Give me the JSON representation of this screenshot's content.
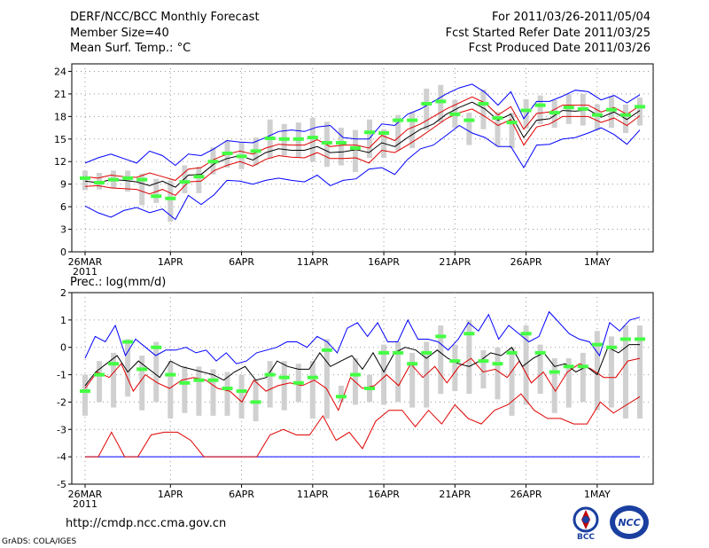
{
  "header": {
    "title": "DERF/NCC/BCC Monthly Forecast",
    "members": "Member Size=40",
    "variable": "Mean Surf. Temp.: °C",
    "period": "For 2011/03/26-2011/05/04",
    "started": "Fcst Started Refer Date 2011/03/25",
    "produced": "Fcst Produced Date 2011/03/26"
  },
  "footer": {
    "url": "http://cmdp.ncc.cma.gov.cn",
    "credit": "GrADS: COLA/IGES",
    "logo_left_text": "BCC",
    "logo_right_text": "NCC"
  },
  "colors": {
    "mean": "#000000",
    "inner": "#e00000",
    "outer": "#0000ff",
    "box": "#d0d0d0",
    "marker": "#44ff44",
    "grid": "#999999"
  },
  "chart_data": [
    {
      "type": "line",
      "title": "Mean Surf. Temp.: °C",
      "x_tick_labels": [
        "26MAR",
        "1APR",
        "6APR",
        "11APR",
        "16APR",
        "21APR",
        "26APR",
        "1MAY"
      ],
      "x_tick_days": [
        0,
        6,
        11,
        16,
        21,
        26,
        31,
        36
      ],
      "year_label": "2011",
      "ylim": [
        0,
        25
      ],
      "yticks": [
        0,
        3,
        6,
        9,
        12,
        15,
        18,
        21,
        24
      ],
      "days": 40,
      "series": [
        {
          "name": "mean",
          "values": [
            9.4,
            9.2,
            9.6,
            9.5,
            9.3,
            8.8,
            9.4,
            8.6,
            10.2,
            10.3,
            11.7,
            12.4,
            12.8,
            12.2,
            13.2,
            13.7,
            13.5,
            13.5,
            14.0,
            13.2,
            13.3,
            13.6,
            13.2,
            14.5,
            14.0,
            15.2,
            16.3,
            17.0,
            18.3,
            19.2,
            19.9,
            19.0,
            17.5,
            18.3,
            15.2,
            17.5,
            17.7,
            18.8,
            18.7,
            18.9,
            17.9,
            18.6,
            17.6,
            18.8
          ]
        },
        {
          "name": "upper_red",
          "values": [
            10.0,
            9.8,
            10.2,
            10.0,
            9.9,
            10.5,
            10.0,
            9.5,
            11.0,
            11.2,
            12.3,
            13.0,
            13.4,
            13.0,
            13.8,
            14.3,
            14.2,
            14.2,
            14.9,
            14.0,
            14.2,
            14.2,
            13.8,
            15.5,
            14.8,
            16.3,
            17.0,
            18.0,
            19.0,
            19.8,
            20.6,
            19.8,
            18.2,
            19.3,
            16.3,
            18.4,
            18.6,
            19.5,
            19.5,
            19.5,
            18.6,
            19.2,
            18.3,
            19.4
          ]
        },
        {
          "name": "lower_red",
          "values": [
            8.7,
            8.8,
            8.5,
            8.4,
            8.3,
            7.7,
            8.3,
            7.5,
            9.3,
            9.4,
            10.8,
            11.5,
            12.0,
            11.4,
            12.3,
            12.8,
            12.6,
            12.5,
            13.2,
            12.4,
            12.4,
            12.5,
            11.8,
            13.5,
            13.2,
            14.2,
            15.3,
            16.5,
            17.7,
            18.5,
            19.0,
            18.0,
            16.8,
            17.6,
            14.2,
            16.6,
            17.0,
            18.0,
            18.0,
            18.0,
            17.2,
            17.8,
            16.8,
            18.1
          ]
        },
        {
          "name": "max_blue",
          "values": [
            11.8,
            12.5,
            13.0,
            12.4,
            11.8,
            13.4,
            12.8,
            11.5,
            13.0,
            12.8,
            13.7,
            14.8,
            14.6,
            14.5,
            15.2,
            16.0,
            16.2,
            16.0,
            16.6,
            16.8,
            15.2,
            15.0,
            15.0,
            17.0,
            16.8,
            18.3,
            19.0,
            20.0,
            21.0,
            21.8,
            22.3,
            21.2,
            19.5,
            21.3,
            17.7,
            20.0,
            20.0,
            20.7,
            21.5,
            21.3,
            20.2,
            20.8,
            19.8,
            20.9
          ]
        },
        {
          "name": "min_blue",
          "values": [
            6.1,
            5.2,
            4.6,
            5.5,
            5.9,
            5.2,
            5.7,
            4.3,
            7.5,
            6.3,
            7.6,
            9.5,
            9.4,
            9.0,
            9.5,
            9.8,
            9.5,
            9.3,
            10.2,
            8.8,
            9.5,
            9.7,
            11.0,
            11.2,
            10.3,
            12.3,
            13.7,
            14.2,
            15.5,
            16.8,
            15.8,
            15.2,
            14.0,
            14.0,
            11.2,
            14.2,
            14.3,
            15.0,
            15.2,
            15.8,
            16.5,
            15.6,
            14.3,
            16.2
          ]
        },
        {
          "name": "observed_marker",
          "values": [
            9.8,
            9.2,
            9.6,
            9.8,
            9.6,
            7.4,
            7.1,
            9.3,
            10.0,
            12.0,
            13.1,
            12.7,
            13.4,
            15.1,
            15.0,
            15.0,
            15.2,
            14.5,
            14.5,
            13.8,
            15.9,
            15.8,
            17.5,
            17.5,
            19.7,
            20.0,
            18.3,
            17.5,
            19.7,
            17.8,
            17.2,
            18.8,
            19.5,
            18.5,
            19.2,
            19.0,
            18.2,
            18.9,
            18.2,
            19.3
          ]
        },
        {
          "name": "box_q1",
          "values": [
            8.2,
            8.3,
            8.4,
            8.0,
            6.2,
            6.5,
            4.0,
            7.8,
            7.8,
            10.3,
            11.2,
            11.0,
            11.5,
            12.4,
            12.8,
            12.6,
            12.0,
            11.3,
            11.5,
            10.6,
            12.5,
            12.5,
            13.5,
            13.8,
            16.2,
            17.2,
            16.5,
            14.2,
            16.3,
            14.0,
            13.8,
            16.4,
            17.0,
            16.5,
            17.0,
            16.8,
            16.2,
            16.5,
            15.8,
            16.8
          ]
        },
        {
          "name": "box_q3",
          "values": [
            10.8,
            10.5,
            10.8,
            10.8,
            10.4,
            9.7,
            9.5,
            11.5,
            11.3,
            13.9,
            14.8,
            14.6,
            15.2,
            17.6,
            17.0,
            17.2,
            17.8,
            17.3,
            16.5,
            16.2,
            17.6,
            16.3,
            18.2,
            18.6,
            21.7,
            22.2,
            20.2,
            18.5,
            21.6,
            18.6,
            18.5,
            20.3,
            20.8,
            20.2,
            21.0,
            21.0,
            19.6,
            20.7,
            19.6,
            20.5
          ]
        }
      ]
    },
    {
      "type": "line",
      "title": "Prec.: log(mm/d)",
      "x_tick_labels": [
        "26MAR",
        "1APR",
        "6APR",
        "11APR",
        "16APR",
        "21APR",
        "26APR",
        "1MAY"
      ],
      "x_tick_days": [
        0,
        6,
        11,
        16,
        21,
        26,
        31,
        36
      ],
      "year_label": "2011",
      "ylim": [
        -5,
        2
      ],
      "yticks": [
        -5,
        -4,
        -3,
        -2,
        -1,
        0,
        1,
        2
      ],
      "days": 40,
      "series": [
        {
          "name": "max_blue",
          "values": [
            -0.4,
            0.4,
            0.2,
            0.8,
            -0.3,
            0.3,
            0.0,
            -0.3,
            -0.1,
            -0.1,
            0.0,
            -0.2,
            -0.1,
            -0.5,
            -0.2,
            -0.6,
            -0.5,
            -0.2,
            -0.1,
            0.0,
            0.2,
            0.2,
            0.0,
            0.4,
            0.2,
            -0.2,
            0.7,
            0.9,
            0.4,
            0.9,
            0.2,
            0.2,
            1.0,
            0.3,
            0.3,
            0.2,
            -0.1,
            0.3,
            0.9,
            0.6,
            1.2,
            0.3,
            0.8,
            0.5,
            0.2,
            0.4,
            1.3,
            0.9,
            0.5,
            0.3,
            0.2,
            -0.3,
            0.9,
            0.6,
            1.0,
            1.1
          ]
        },
        {
          "name": "mean",
          "values": [
            -1.4,
            -0.9,
            -0.6,
            -0.3,
            -0.9,
            -0.5,
            -0.8,
            -1.1,
            -0.5,
            -0.7,
            -0.8,
            -0.9,
            -1.0,
            -1.2,
            -0.9,
            -0.7,
            -1.2,
            -1.1,
            -0.5,
            -0.7,
            -0.8,
            -0.8,
            -0.2,
            -0.7,
            -0.5,
            -0.3,
            -0.8,
            -0.2,
            -0.9,
            -0.2,
            0.0,
            -0.1,
            -0.4,
            -0.1,
            -0.4,
            -0.6,
            -0.7,
            -0.5,
            -0.2,
            -0.3,
            0.0,
            -0.7,
            -0.4,
            -0.2,
            -0.7,
            -0.6,
            -0.9,
            -0.7,
            -1.0,
            0.0,
            -0.2,
            0.1,
            0.1
          ]
        },
        {
          "name": "upper_red",
          "values": [
            -1.5,
            -0.9,
            -1.1,
            -0.6,
            -1.6,
            -1.0,
            -1.3,
            -1.5,
            -1.2,
            -1.1,
            -1.2,
            -1.5,
            -1.6,
            -2.0,
            -1.2,
            -1.6,
            -1.4,
            -1.3,
            -1.4,
            -1.2,
            -1.5,
            -2.3,
            -1.1,
            -1.5,
            -1.4,
            -1.0,
            -1.4,
            -0.6,
            -1.1,
            -0.7,
            -1.3,
            -0.7,
            -0.4,
            -0.9,
            -0.8,
            -1.1,
            -0.5,
            -1.3,
            -0.9,
            -1.6,
            -0.9,
            -0.6,
            -0.8,
            -1.1,
            -1.1,
            -0.5,
            -0.4
          ]
        },
        {
          "name": "lower_red",
          "values": [
            -4.0,
            -4.0,
            -3.1,
            -4.0,
            -4.0,
            -3.2,
            -3.1,
            -3.1,
            -3.4,
            -4.0,
            -4.0,
            -4.0,
            -4.0,
            -4.0,
            -3.2,
            -3.0,
            -3.2,
            -3.2,
            -2.5,
            -3.4,
            -3.1,
            -3.7,
            -2.7,
            -2.3,
            -2.3,
            -2.9,
            -2.3,
            -2.8,
            -2.1,
            -2.6,
            -2.8,
            -2.3,
            -2.1,
            -1.7,
            -2.3,
            -2.6,
            -2.6,
            -2.8,
            -2.8,
            -2.0,
            -2.4,
            -2.1,
            -1.8
          ]
        },
        {
          "name": "min_blue",
          "values": [
            -4.0,
            -4.0,
            -4.0,
            -4.0,
            -4.0,
            -4.0,
            -4.0,
            -4.0,
            -4.0,
            -4.0,
            -4.0,
            -4.0,
            -4.0,
            -4.0,
            -4.0,
            -4.0,
            -4.0,
            -4.0,
            -4.0,
            -4.0,
            -4.0,
            -4.0,
            -4.0,
            -4.0,
            -4.0,
            -4.0,
            -4.0,
            -4.0,
            -4.0,
            -4.0,
            -4.0,
            -4.0,
            -4.0,
            -4.0,
            -4.0,
            -4.0,
            -4.0,
            -4.0,
            -4.0,
            -4.0,
            -4.0,
            -4.0,
            -4.0,
            -4.0,
            -4.0,
            -4.0,
            -4.0,
            -4.0,
            -4.0,
            -4.0,
            -4.0,
            -4.0,
            -4.0
          ]
        },
        {
          "name": "observed_marker",
          "values": [
            -1.6,
            -1.0,
            -0.6,
            0.2,
            -0.8,
            0.0,
            -1.0,
            -1.3,
            -1.2,
            -1.2,
            -1.5,
            -1.6,
            -2.0,
            -1.0,
            -1.1,
            -1.3,
            -1.1,
            -0.1,
            -1.8,
            -1.0,
            -1.5,
            -0.2,
            -0.2,
            -0.6,
            -0.2,
            0.4,
            -0.5,
            0.5,
            -0.5,
            -0.6,
            -0.2,
            0.5,
            -0.2,
            -0.9,
            -0.7,
            -0.7,
            0.1,
            0.0,
            0.3,
            0.3
          ]
        },
        {
          "name": "box_q1",
          "values": [
            -2.5,
            -2.0,
            -2.2,
            -1.8,
            -2.3,
            -2.0,
            -2.6,
            -2.4,
            -2.5,
            -2.5,
            -2.5,
            -2.6,
            -2.7,
            -2.2,
            -2.3,
            -2.0,
            -2.6,
            -2.6,
            -2.0,
            -2.1,
            -2.0,
            -2.1,
            -2.0,
            -2.2,
            -2.2,
            -1.7,
            -1.6,
            -1.7,
            -1.5,
            -1.9,
            -2.5,
            -2.1,
            -1.7,
            -2.4,
            -2.2,
            -2.0,
            -2.3,
            -2.2,
            -2.6,
            -2.6
          ]
        },
        {
          "name": "box_q3",
          "values": [
            -1.0,
            -0.5,
            -0.2,
            0.3,
            -0.3,
            0.2,
            -0.5,
            -0.7,
            -0.7,
            -0.8,
            -0.9,
            -1.0,
            -1.2,
            -0.5,
            -0.5,
            -0.6,
            -0.5,
            0.3,
            -1.4,
            -0.4,
            -1.0,
            0.1,
            0.2,
            -0.2,
            0.2,
            0.8,
            0.1,
            1.0,
            -0.1,
            0.0,
            0.0,
            0.8,
            0.1,
            -0.4,
            -0.4,
            -0.2,
            0.6,
            0.4,
            0.8,
            0.8
          ]
        }
      ]
    }
  ]
}
